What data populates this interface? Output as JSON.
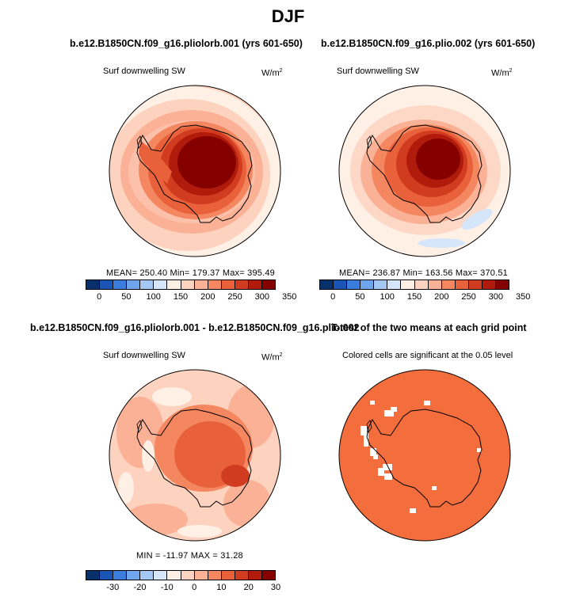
{
  "title": "DJF",
  "panels": [
    {
      "id": "p1",
      "title": "b.e12.B1850CN.f09_g16.pliolorb.001 (yrs 601-650)",
      "left_label": "Surf downwelling SW",
      "units": "W/m",
      "units_sup": "2",
      "stats": "MEAN= 250.40   Min= 179.37   Max= 395.49"
    },
    {
      "id": "p2",
      "title": "b.e12.B1850CN.f09_g16.plio.002 (yrs 601-650)",
      "left_label": "Surf downwelling SW",
      "units": "W/m",
      "units_sup": "2",
      "stats": "MEAN= 236.87   Min= 163.56   Max= 370.51"
    },
    {
      "id": "p3",
      "title": "b.e12.B1850CN.f09_g16.pliolorb.001 - b.e12.B1850CN.f09_g16.plio.002",
      "left_label": "Surf downwelling SW",
      "units": "W/m",
      "units_sup": "2",
      "stats": "MIN = -11.97  MAX =  31.28"
    },
    {
      "id": "p4",
      "title": "T-test of the two means at each grid point",
      "left_label": "Colored cells are significant at the 0.05 level"
    }
  ],
  "colorbar_abs": {
    "colors": [
      "#08306b",
      "#1a55b5",
      "#3b7ddd",
      "#6ea5ec",
      "#a3c8f4",
      "#d5e6fa",
      "#fff0e6",
      "#fdd2bf",
      "#fbb196",
      "#f4875f",
      "#e9613a",
      "#d13b1f",
      "#b01b0c",
      "#850100"
    ],
    "ticks": [
      "0",
      "50",
      "100",
      "150",
      "200",
      "250",
      "300",
      "350"
    ]
  },
  "colorbar_diff": {
    "colors": [
      "#08306b",
      "#1a55b5",
      "#3b7ddd",
      "#6ea5ec",
      "#a3c8f4",
      "#d5e6fa",
      "#fff0e6",
      "#fdd2bf",
      "#fbb196",
      "#f4875f",
      "#e9613a",
      "#d13b1f",
      "#b01b0c",
      "#850100"
    ],
    "ticks": [
      "-30",
      "-20",
      "-10",
      "0",
      "10",
      "20",
      "30"
    ]
  },
  "colors": {
    "ttest_fill": "#f36d3d",
    "coast": "#000000"
  }
}
